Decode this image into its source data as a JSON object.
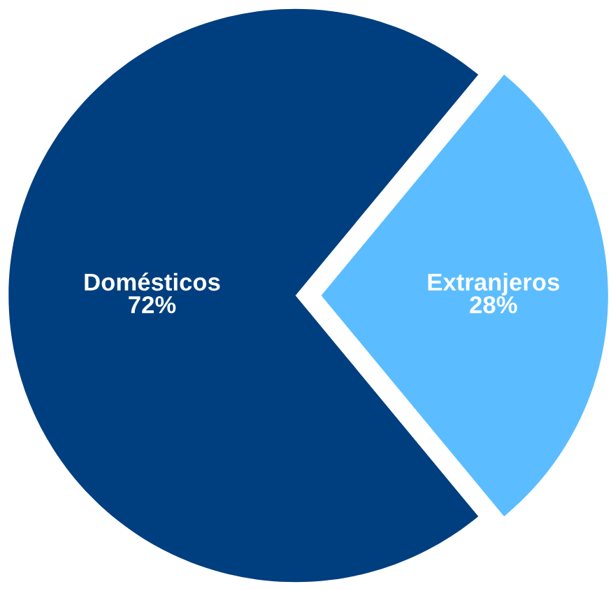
{
  "chart_data": {
    "type": "pie",
    "categories": [
      "Domésticos",
      "Extranjeros"
    ],
    "values": [
      72,
      28
    ],
    "value_labels": [
      "72%",
      "28%"
    ],
    "colors": [
      "#003f7f",
      "#5bbdff"
    ],
    "legend": false
  }
}
